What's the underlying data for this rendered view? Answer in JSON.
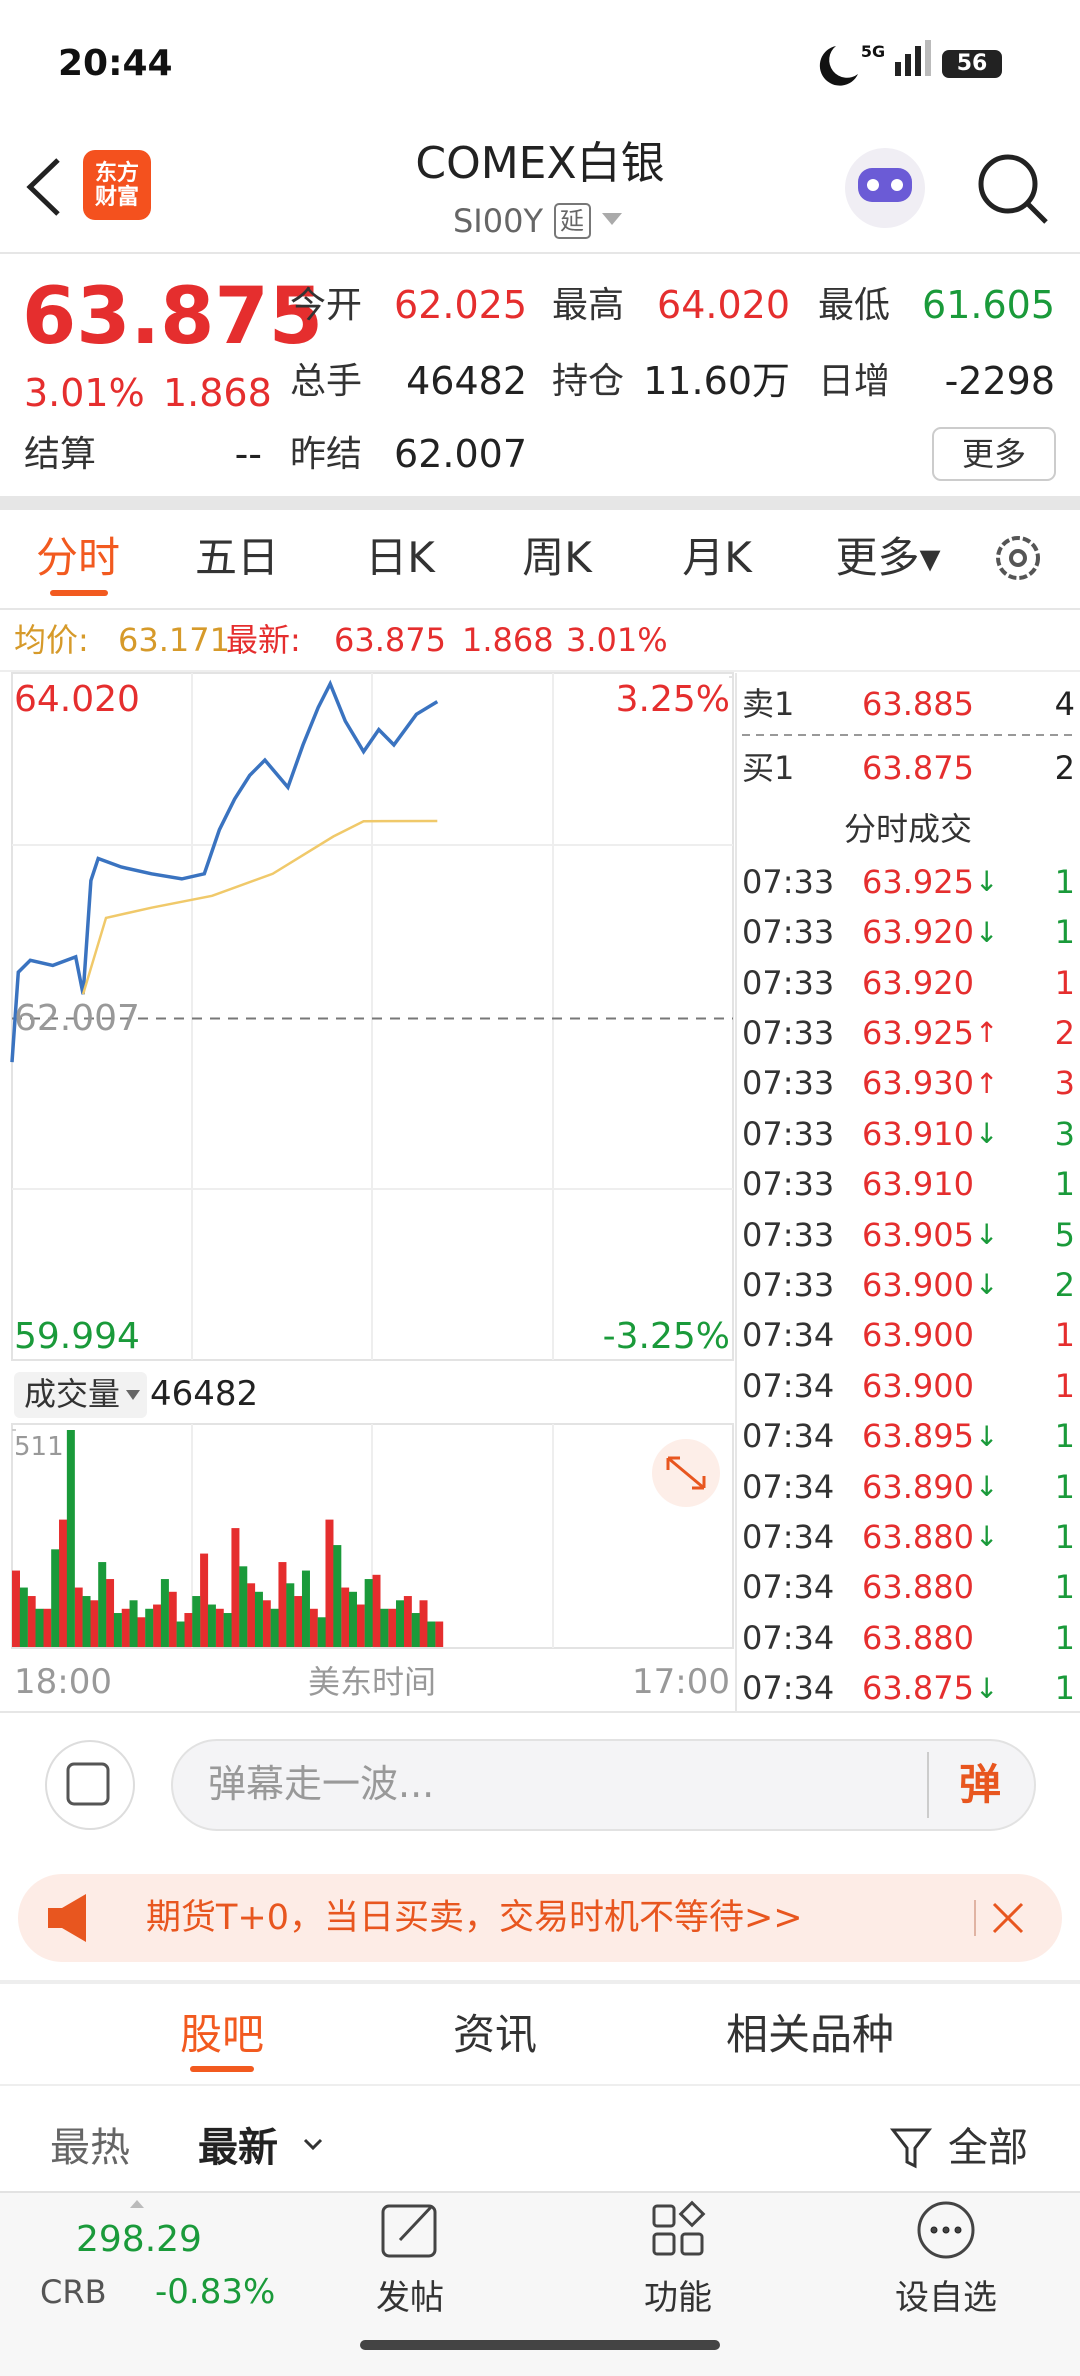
{
  "status_bar": {
    "time": "20:44",
    "network": "5G",
    "battery": "56"
  },
  "header": {
    "logo": "东方财富",
    "title": "COMEX白银",
    "code": "SI00Y",
    "tag": "延"
  },
  "quote": {
    "price": "63.875",
    "change_pct": "3.01%",
    "change": "1.868",
    "more_button": "更多",
    "rows": [
      [
        {
          "label": "今开",
          "value": "62.025",
          "color": "#e52e2e"
        },
        {
          "label": "最高",
          "value": "64.020",
          "color": "#e52e2e"
        },
        {
          "label": "最低",
          "value": "61.605",
          "color": "#1a9a3a"
        }
      ],
      [
        {
          "label": "总手",
          "value": "46482",
          "color": "#222222"
        },
        {
          "label": "持仓",
          "value": "11.60万",
          "color": "#222222"
        },
        {
          "label": "日增",
          "value": "-2298",
          "color": "#222222"
        }
      ],
      [
        {
          "label": "结算",
          "value": "--",
          "color": "#222222"
        },
        {
          "label": "昨结",
          "value": "62.007",
          "color": "#222222"
        }
      ]
    ]
  },
  "tabs": {
    "items": [
      "分时",
      "五日",
      "日K",
      "周K",
      "月K",
      "更多▾"
    ],
    "active": 0
  },
  "info_line": {
    "avg_label": "均价:",
    "avg": "63.171",
    "latest_label": "最新:",
    "latest": "63.875",
    "change": "1.868",
    "pct": "3.01%"
  },
  "chart_data": [
    {
      "type": "line",
      "xlim": [
        "18:00",
        "17:00"
      ],
      "x_axis_label": "美东时间",
      "ylim": [
        59.994,
        64.02
      ],
      "yticks": [
        {
          "value": 64.02,
          "label": "64.020",
          "color": "#e52e2e"
        },
        {
          "value": 62.007,
          "label": "62.007",
          "color": "#999999"
        },
        {
          "value": 59.994,
          "label": "59.994",
          "color": "#1a9a3a"
        }
      ],
      "y2lim": [
        -3.25,
        3.25
      ],
      "y2ticks": [
        {
          "value": 3.25,
          "label": "3.25%",
          "color": "#e52e2e"
        },
        {
          "value": -3.25,
          "label": "-3.25%",
          "color": "#1a9a3a"
        }
      ],
      "series": [
        {
          "color": "#3a73c0",
          "x": [
            "18:00",
            "18:12",
            "18:35",
            "19:18",
            "20:02",
            "20:16",
            "20:31",
            "20:45",
            "21:29",
            "22:27",
            "23:25",
            "00:08",
            "00:37",
            "01:06",
            "01:35",
            "02:04",
            "02:48",
            "03:17",
            "03:46",
            "04:09",
            "04:38",
            "05:13",
            "05:42",
            "06:11",
            "06:54",
            "07:34"
          ],
          "values": [
            61.75,
            62.28,
            62.35,
            62.32,
            62.37,
            62.15,
            62.82,
            62.95,
            62.9,
            62.86,
            62.83,
            62.86,
            63.12,
            63.3,
            63.44,
            63.53,
            63.37,
            63.62,
            63.84,
            63.98,
            63.76,
            63.58,
            63.71,
            63.62,
            63.8,
            63.875
          ]
        },
        {
          "color": "#f0c96a",
          "x": [
            "20:16",
            "21:00",
            "22:27",
            "00:23",
            "02:19",
            "04:15",
            "05:13",
            "07:34"
          ],
          "values": [
            62.15,
            62.6,
            62.66,
            62.73,
            62.86,
            63.08,
            63.17,
            63.171
          ]
        }
      ]
    },
    {
      "type": "bar",
      "label": "成交量",
      "total": "46482",
      "xlim": [
        "18:00",
        "17:00"
      ],
      "ylim": [
        0,
        511
      ],
      "yticks": [
        511
      ],
      "series": [
        {
          "color": "#e52e2e",
          "x": [
            "18:00",
            "18:30",
            "19:00",
            "19:30",
            "20:00",
            "20:30",
            "21:00",
            "21:30",
            "22:00",
            "22:30",
            "23:00",
            "23:30",
            "00:00",
            "00:30",
            "01:00",
            "01:30",
            "02:00",
            "02:30",
            "03:00",
            "03:30",
            "04:00",
            "04:30",
            "05:00",
            "05:30",
            "06:00",
            "06:30",
            "07:00",
            "07:30"
          ],
          "values": [
            180,
            120,
            90,
            300,
            140,
            110,
            160,
            90,
            70,
            100,
            130,
            80,
            220,
            90,
            280,
            150,
            110,
            200,
            120,
            90,
            300,
            140,
            100,
            170,
            90,
            120,
            110,
            60
          ]
        },
        {
          "color": "#1a9a3a",
          "x": [
            "18:15",
            "18:45",
            "19:15",
            "19:45",
            "20:15",
            "20:45",
            "21:15",
            "21:45",
            "22:15",
            "22:45",
            "23:15",
            "23:45",
            "00:15",
            "00:45",
            "01:15",
            "01:45",
            "02:15",
            "02:45",
            "03:15",
            "03:45",
            "04:15",
            "04:45",
            "05:15",
            "05:45",
            "06:15",
            "06:45",
            "07:15"
          ],
          "values": [
            140,
            90,
            230,
            511,
            120,
            200,
            80,
            110,
            90,
            160,
            60,
            120,
            100,
            80,
            190,
            130,
            90,
            150,
            180,
            70,
            240,
            130,
            160,
            90,
            110,
            80,
            60
          ]
        }
      ]
    }
  ],
  "order_book": {
    "ask": {
      "label": "卖1",
      "price": "63.885",
      "volume": "4"
    },
    "bid": {
      "label": "买1",
      "price": "63.875",
      "volume": "2"
    }
  },
  "trades": {
    "title": "分时成交",
    "rows": [
      {
        "time": "07:33",
        "price": "63.925",
        "arrow": "↓",
        "volume": "1",
        "volume_color": "#1a9a3a"
      },
      {
        "time": "07:33",
        "price": "63.920",
        "arrow": "↓",
        "volume": "1",
        "volume_color": "#1a9a3a"
      },
      {
        "time": "07:33",
        "price": "63.920",
        "volume": "1",
        "volume_color": "#e52e2e"
      },
      {
        "time": "07:33",
        "price": "63.925",
        "arrow": "↑",
        "volume": "2",
        "volume_color": "#e52e2e"
      },
      {
        "time": "07:33",
        "price": "63.930",
        "arrow": "↑",
        "volume": "3",
        "volume_color": "#e52e2e"
      },
      {
        "time": "07:33",
        "price": "63.910",
        "arrow": "↓",
        "volume": "3",
        "volume_color": "#1a9a3a"
      },
      {
        "time": "07:33",
        "price": "63.910",
        "volume": "1",
        "volume_color": "#1a9a3a"
      },
      {
        "time": "07:33",
        "price": "63.905",
        "arrow": "↓",
        "volume": "5",
        "volume_color": "#1a9a3a"
      },
      {
        "time": "07:33",
        "price": "63.900",
        "arrow": "↓",
        "volume": "2",
        "volume_color": "#1a9a3a"
      },
      {
        "time": "07:34",
        "price": "63.900",
        "volume": "1",
        "volume_color": "#e52e2e"
      },
      {
        "time": "07:34",
        "price": "63.900",
        "volume": "1",
        "volume_color": "#e52e2e"
      },
      {
        "time": "07:34",
        "price": "63.895",
        "arrow": "↓",
        "volume": "1",
        "volume_color": "#1a9a3a"
      },
      {
        "time": "07:34",
        "price": "63.890",
        "arrow": "↓",
        "volume": "1",
        "volume_color": "#1a9a3a"
      },
      {
        "time": "07:34",
        "price": "63.880",
        "arrow": "↓",
        "volume": "1",
        "volume_color": "#1a9a3a"
      },
      {
        "time": "07:34",
        "price": "63.880",
        "volume": "1",
        "volume_color": "#1a9a3a"
      },
      {
        "time": "07:34",
        "price": "63.880",
        "volume": "1",
        "volume_color": "#1a9a3a"
      },
      {
        "time": "07:34",
        "price": "63.875",
        "arrow": "↓",
        "volume": "1",
        "volume_color": "#1a9a3a"
      }
    ]
  },
  "comment": {
    "placeholder": "弹幕走一波...",
    "button": "弹"
  },
  "banner": {
    "text": "期货T+0，当日买卖，交易时机不等待>>"
  },
  "section_tabs": {
    "items": [
      "股吧",
      "资讯",
      "相关品种"
    ],
    "active": 0
  },
  "filters": {
    "items": [
      "最热",
      "最新"
    ],
    "right": "全部"
  },
  "bottom_nav": {
    "index": {
      "value": "298.29",
      "name": "CRB",
      "change": "-0.83%"
    },
    "items": [
      "发帖",
      "功能",
      "设自选"
    ]
  }
}
